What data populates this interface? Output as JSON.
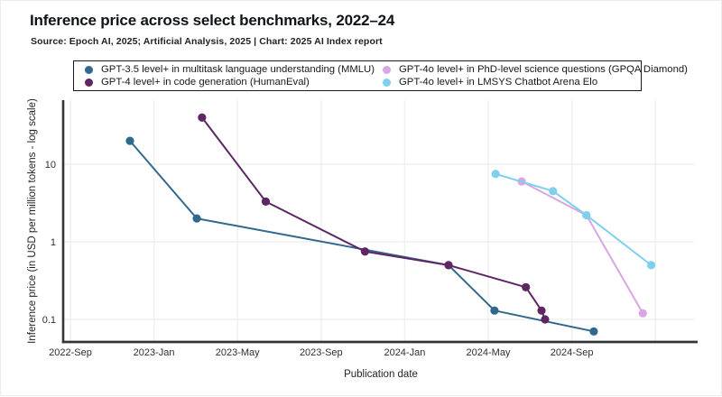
{
  "header": {
    "title": "Inference price across select benchmarks, 2022–24",
    "source": "Source: Epoch AI, 2025; Artificial Analysis, 2025 | Chart: 2025 AI Index report"
  },
  "legend": {
    "items": [
      {
        "label": "GPT-3.5 level+ in multitask language understanding (MMLU)",
        "color": "#31688e"
      },
      {
        "label": "GPT-4 level+ in code generation (HumanEval)",
        "color": "#5e2764"
      },
      {
        "label": "GPT-4o level+ in PhD-level science questions (GPQA Diamond)",
        "color": "#d9a6e3"
      },
      {
        "label": "GPT-4o level+ in LMSYS Chatbot Arena Elo",
        "color": "#7fd0ec"
      }
    ]
  },
  "chart_data": {
    "type": "line",
    "title": "Inference price across select benchmarks, 2022–24",
    "xlabel": "Publication date",
    "ylabel": "Inference price (in USD per million tokens - log scale)",
    "y_scale": "log",
    "ylim": [
      0.05,
      60
    ],
    "grid": true,
    "legend_position": "top",
    "x_unit_note": "m = months after 2022-Sep",
    "y_ticks": [
      {
        "label": "10",
        "value": 10
      },
      {
        "label": "1",
        "value": 1
      },
      {
        "label": "0.1",
        "value": 0.1
      }
    ],
    "x_ticks": [
      {
        "label": "2022-Sep",
        "m": 0
      },
      {
        "label": "2023-Jan",
        "m": 4
      },
      {
        "label": "2023-May",
        "m": 8
      },
      {
        "label": "2023-Sep",
        "m": 12
      },
      {
        "label": "2024-Jan",
        "m": 16
      },
      {
        "label": "2024-May",
        "m": 20
      },
      {
        "label": "2024-Sep",
        "m": 24
      },
      {
        "label": "",
        "m": 28
      }
    ],
    "series": [
      {
        "name": "GPT-3.5 level+ in multitask language understanding (MMLU)",
        "color": "#31688e",
        "points": [
          {
            "date": "2022-Nov",
            "m": 2.85,
            "usd": 20
          },
          {
            "date": "2023-Mar",
            "m": 6.05,
            "usd": 2.0
          },
          {
            "date": "2024-Mar",
            "m": 18.1,
            "usd": 0.5
          },
          {
            "date": "2024-May",
            "m": 20.3,
            "usd": 0.13
          },
          {
            "date": "2024-Oct",
            "m": 25.05,
            "usd": 0.07
          }
        ]
      },
      {
        "name": "GPT-4 level+ in code generation (HumanEval)",
        "color": "#5e2764",
        "points": [
          {
            "date": "2023-Mar",
            "m": 6.3,
            "usd": 40
          },
          {
            "date": "2023-Jun",
            "m": 9.35,
            "usd": 3.3
          },
          {
            "date": "2023-Nov",
            "m": 14.1,
            "usd": 0.75
          },
          {
            "date": "2024-Mar",
            "m": 18.1,
            "usd": 0.5
          },
          {
            "date": "2024-Jun",
            "m": 21.8,
            "usd": 0.26
          },
          {
            "date": "2024-Jul",
            "m": 22.55,
            "usd": 0.13
          },
          {
            "date": "2024-Aug",
            "m": 22.72,
            "usd": 0.1
          }
        ]
      },
      {
        "name": "GPT-4o level+ in PhD-level science questions (GPQA Diamond)",
        "color": "#d9a6e3",
        "points": [
          {
            "date": "2024-Jun",
            "m": 21.6,
            "usd": 6.0
          },
          {
            "date": "2024-Sep",
            "m": 24.7,
            "usd": 2.2
          },
          {
            "date": "2024-Dec",
            "m": 27.4,
            "usd": 0.12
          }
        ]
      },
      {
        "name": "GPT-4o level+ in LMSYS Chatbot Arena Elo",
        "color": "#7fd0ec",
        "points": [
          {
            "date": "2024-May",
            "m": 20.35,
            "usd": 7.5
          },
          {
            "date": "2024-Aug",
            "m": 23.1,
            "usd": 4.5
          },
          {
            "date": "2024-Sep",
            "m": 24.7,
            "usd": 2.2
          },
          {
            "date": "2025-Jan",
            "m": 27.8,
            "usd": 0.5
          }
        ]
      }
    ],
    "style": {
      "axis_color": "#313638",
      "grid_color": "#efefef",
      "tick_color": "#2b2f33"
    }
  }
}
